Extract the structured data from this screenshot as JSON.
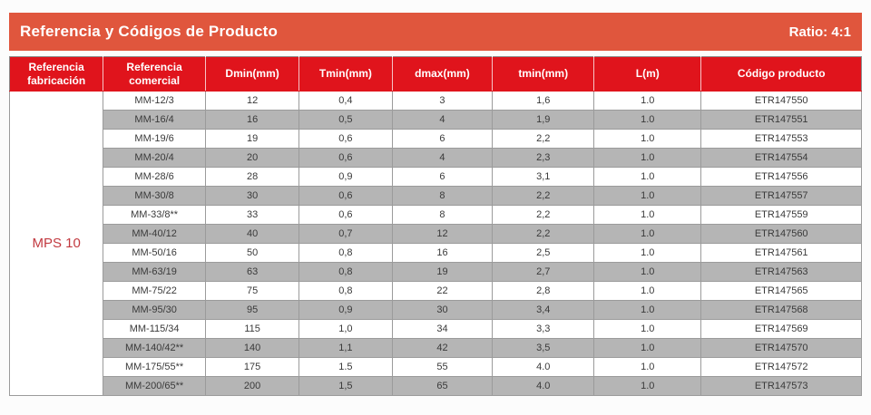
{
  "banner": {
    "title": "Referencia y Códigos de Producto",
    "ratio_label": "Ratio: 4:1"
  },
  "colors": {
    "banner_bg": "#E0563D",
    "header_bg": "#E0141C",
    "row_alt_bg": "#B5B5B5",
    "accent_red": "#C23A40",
    "body_text": "#3A3A3A"
  },
  "table": {
    "columns": [
      "Referencia fabricación",
      "Referencia comercial",
      "Dmin(mm)",
      "Tmin(mm)",
      "dmax(mm)",
      "tmin(mm)",
      "L(m)",
      "Código producto"
    ],
    "fabricacion": "MPS 10",
    "rows": [
      [
        "MM-12/3",
        "12",
        "0,4",
        "3",
        "1,6",
        "1.0",
        "ETR147550"
      ],
      [
        "MM-16/4",
        "16",
        "0,5",
        "4",
        "1,9",
        "1.0",
        "ETR147551"
      ],
      [
        "MM-19/6",
        "19",
        "0,6",
        "6",
        "2,2",
        "1.0",
        "ETR147553"
      ],
      [
        "MM-20/4",
        "20",
        "0,6",
        "4",
        "2,3",
        "1.0",
        "ETR147554"
      ],
      [
        "MM-28/6",
        "28",
        "0,9",
        "6",
        "3,1",
        "1.0",
        "ETR147556"
      ],
      [
        "MM-30/8",
        "30",
        "0,6",
        "8",
        "2,2",
        "1.0",
        "ETR147557"
      ],
      [
        "MM-33/8**",
        "33",
        "0,6",
        "8",
        "2,2",
        "1.0",
        "ETR147559"
      ],
      [
        "MM-40/12",
        "40",
        "0,7",
        "12",
        "2,2",
        "1.0",
        "ETR147560"
      ],
      [
        "MM-50/16",
        "50",
        "0,8",
        "16",
        "2,5",
        "1.0",
        "ETR147561"
      ],
      [
        "MM-63/19",
        "63",
        "0,8",
        "19",
        "2,7",
        "1.0",
        "ETR147563"
      ],
      [
        "MM-75/22",
        "75",
        "0,8",
        "22",
        "2,8",
        "1.0",
        "ETR147565"
      ],
      [
        "MM-95/30",
        "95",
        "0,9",
        "30",
        "3,4",
        "1.0",
        "ETR147568"
      ],
      [
        "MM-115/34",
        "115",
        "1,0",
        "34",
        "3,3",
        "1.0",
        "ETR147569"
      ],
      [
        "MM-140/42**",
        "140",
        "1,1",
        "42",
        "3,5",
        "1.0",
        "ETR147570"
      ],
      [
        "MM-175/55**",
        "175",
        "1.5",
        "55",
        "4.0",
        "1.0",
        "ETR147572"
      ],
      [
        "MM-200/65**",
        "200",
        "1,5",
        "65",
        "4.0",
        "1.0",
        "ETR147573"
      ]
    ]
  }
}
